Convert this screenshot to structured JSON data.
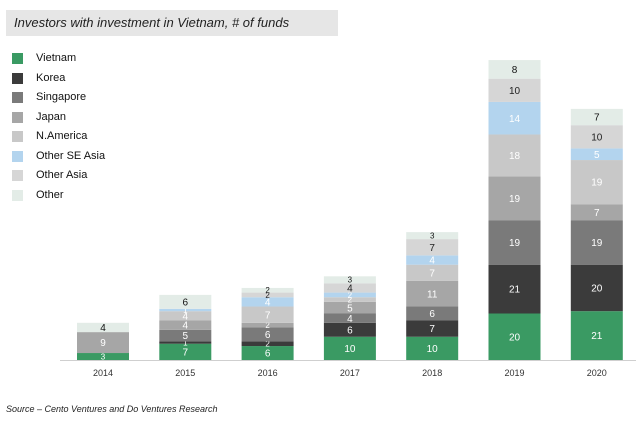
{
  "chart_data": {
    "type": "bar",
    "stacked": true,
    "title": "Investors with investment in Vietnam, # of funds",
    "categories": [
      "2014",
      "2015",
      "2016",
      "2017",
      "2018",
      "2019",
      "2020"
    ],
    "series": [
      {
        "name": "Vietnam",
        "color": "#3a9a63",
        "label_color": "#ffffff",
        "values": [
          3,
          7,
          6,
          10,
          10,
          20,
          21
        ]
      },
      {
        "name": "Korea",
        "color": "#3b3b3b",
        "label_color": "#ffffff",
        "values": [
          0,
          1,
          2,
          6,
          7,
          21,
          20
        ]
      },
      {
        "name": "Singapore",
        "color": "#7a7a7a",
        "label_color": "#ffffff",
        "values": [
          0,
          5,
          6,
          4,
          6,
          19,
          19
        ]
      },
      {
        "name": "Japan",
        "color": "#a6a6a6",
        "label_color": "#ffffff",
        "values": [
          9,
          4,
          2,
          5,
          11,
          19,
          7
        ]
      },
      {
        "name": "N.America",
        "color": "#c8c8c8",
        "label_color": "#ffffff",
        "values": [
          0,
          4,
          7,
          2,
          7,
          18,
          19
        ]
      },
      {
        "name": "Other SE Asia",
        "color": "#b3d4ee",
        "label_color": "#ffffff",
        "values": [
          0,
          1,
          4,
          2,
          4,
          14,
          5
        ]
      },
      {
        "name": "Other Asia",
        "color": "#d6d6d6",
        "label_color": "#222222",
        "values": [
          0,
          0,
          2,
          4,
          7,
          10,
          10
        ]
      },
      {
        "name": "Other",
        "color": "#e3ece7",
        "label_color": "#111111",
        "values": [
          4,
          6,
          2,
          3,
          3,
          8,
          7
        ]
      }
    ],
    "source": "Source – Cento Ventures and Do Ventures Research"
  }
}
